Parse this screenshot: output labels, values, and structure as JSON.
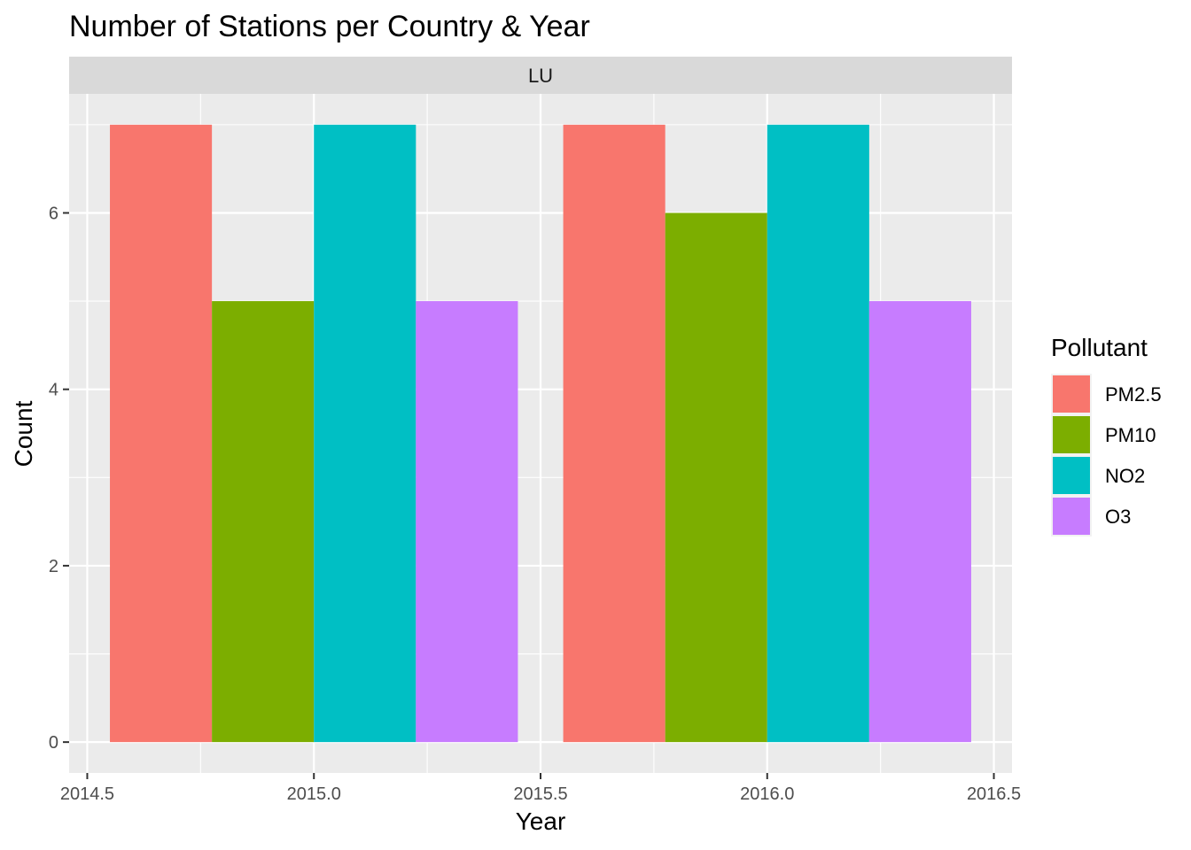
{
  "chart_data": {
    "type": "bar",
    "title": "Number of Stations per Country & Year",
    "facet": "LU",
    "xlabel": "Year",
    "ylabel": "Count",
    "x_ticks": [
      "2014.5",
      "2015.0",
      "2015.5",
      "2016.0",
      "2016.5"
    ],
    "y_ticks": [
      "0",
      "2",
      "4",
      "6"
    ],
    "xlim": [
      2014.46,
      2016.54
    ],
    "ylim": [
      -0.35,
      7.35
    ],
    "categories": [
      2015,
      2016
    ],
    "legend": {
      "title": "Pollutant",
      "position": "right"
    },
    "grid": true,
    "series": [
      {
        "name": "PM2.5",
        "values": [
          7,
          7
        ],
        "color": "#F8766D"
      },
      {
        "name": "PM10",
        "values": [
          5,
          6
        ],
        "color": "#7CAE00"
      },
      {
        "name": "NO2",
        "values": [
          7,
          7
        ],
        "color": "#00BFC4"
      },
      {
        "name": "O3",
        "values": [
          5,
          5
        ],
        "color": "#C77CFF"
      }
    ]
  }
}
